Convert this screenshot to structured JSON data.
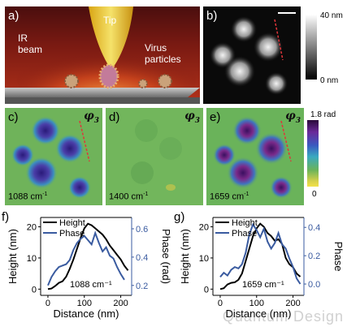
{
  "panel_a": {
    "label": "a)",
    "tip": "Tip",
    "ir_beam": "IR\nbeam",
    "virus": "Virus\nparticles"
  },
  "panel_b": {
    "label": "b)",
    "cbar_max": "40 nm",
    "cbar_min": "0 nm"
  },
  "phase_maps": {
    "symbol": "φ",
    "subscript": "3",
    "cbar_max": "1.8 rad",
    "cbar_min": "0",
    "c": {
      "label": "c)",
      "wavenumber": "1088 cm",
      "unit_sup": "-1"
    },
    "d": {
      "label": "d)",
      "wavenumber": "1400 cm",
      "unit_sup": "-1"
    },
    "e": {
      "label": "e)",
      "wavenumber": "1659 cm",
      "unit_sup": "-1"
    }
  },
  "chart_data": [
    {
      "type": "line",
      "panel": "f)",
      "annotation": "1088 cm⁻¹",
      "xlabel": "Distance (nm)",
      "ylabel_left": "Height (nm)",
      "ylabel_right": "Phase (rad)",
      "xlim": [
        -20,
        230
      ],
      "xticks": [
        0,
        100,
        200
      ],
      "ylim_left": [
        -2,
        23
      ],
      "yticks_left": [
        0,
        10,
        20
      ],
      "ylim_right": [
        0.13,
        0.68
      ],
      "yticks_right": [
        0.2,
        0.4,
        0.6
      ],
      "legend": [
        "Height",
        "Phase"
      ],
      "legend_position": "top-left",
      "series": [
        {
          "name": "Height",
          "axis": "left",
          "color": "#000000",
          "x": [
            0,
            10,
            20,
            30,
            40,
            50,
            60,
            70,
            80,
            90,
            100,
            110,
            120,
            130,
            140,
            150,
            160,
            170,
            180,
            190,
            200,
            210,
            220
          ],
          "y": [
            0,
            0.2,
            1,
            2,
            2.5,
            4,
            6.5,
            9.5,
            13,
            16.5,
            19.5,
            21,
            20.5,
            19.5,
            18.5,
            17.5,
            16,
            14,
            12.5,
            11,
            9.5,
            7.5,
            6
          ]
        },
        {
          "name": "Phase",
          "axis": "right",
          "color": "#3a5ba0",
          "x": [
            0,
            10,
            20,
            30,
            40,
            50,
            60,
            70,
            80,
            90,
            100,
            110,
            120,
            130,
            140,
            150,
            160,
            170,
            180,
            190,
            200,
            210
          ],
          "y": [
            0.2,
            0.26,
            0.3,
            0.33,
            0.34,
            0.35,
            0.38,
            0.45,
            0.5,
            0.53,
            0.55,
            0.52,
            0.49,
            0.57,
            0.5,
            0.44,
            0.47,
            0.41,
            0.39,
            0.33,
            0.28,
            0.24
          ]
        }
      ]
    },
    {
      "type": "line",
      "panel": "g)",
      "annotation": "1659 cm⁻¹",
      "xlabel": "Distance (nm)",
      "ylabel_left": "Height (nm)",
      "ylabel_right": "Phase",
      "xlim": [
        -20,
        230
      ],
      "xticks": [
        0,
        100,
        200
      ],
      "ylim_left": [
        -2,
        23
      ],
      "yticks_left": [
        0,
        10,
        20
      ],
      "ylim_right": [
        -0.08,
        0.47
      ],
      "yticks_right": [
        0.0,
        0.2,
        0.4
      ],
      "legend": [
        "Height",
        "Phase"
      ],
      "legend_position": "top-left",
      "series": [
        {
          "name": "Height",
          "axis": "left",
          "color": "#000000",
          "x": [
            0,
            10,
            20,
            30,
            40,
            50,
            60,
            70,
            80,
            90,
            100,
            110,
            120,
            130,
            140,
            150,
            160,
            170,
            180,
            190,
            200,
            210,
            220
          ],
          "y": [
            0,
            0.3,
            1.5,
            2,
            2.2,
            3,
            5,
            9,
            13,
            17,
            19.5,
            21,
            20,
            18,
            17,
            15.5,
            16,
            14.5,
            10,
            8,
            7,
            5,
            4
          ]
        },
        {
          "name": "Phase",
          "axis": "right",
          "color": "#3a5ba0",
          "x": [
            0,
            10,
            20,
            30,
            40,
            50,
            60,
            70,
            80,
            90,
            100,
            110,
            120,
            130,
            140,
            150,
            160,
            170,
            180,
            190,
            200,
            210,
            220
          ],
          "y": [
            0.05,
            0.08,
            0.06,
            0.1,
            0.12,
            0.11,
            0.14,
            0.22,
            0.35,
            0.42,
            0.38,
            0.33,
            0.39,
            0.3,
            0.25,
            0.29,
            0.36,
            0.28,
            0.25,
            0.18,
            0.12,
            0.04,
            0.0
          ]
        }
      ]
    }
  ],
  "watermark": "Quantum Design"
}
